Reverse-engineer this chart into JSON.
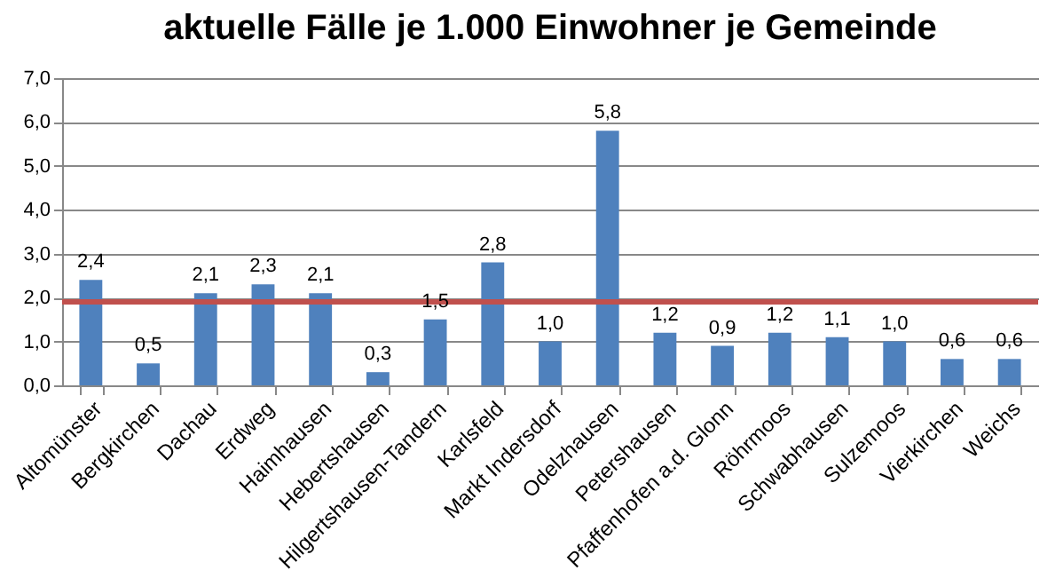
{
  "chart_data": {
    "type": "bar",
    "title": "aktuelle Fälle je 1.000 Einwohner je Gemeinde",
    "categories": [
      "Altomünster",
      "Bergkirchen",
      "Dachau",
      "Erdweg",
      "Haimhausen",
      "Hebertshausen",
      "Hilgertshausen-Tandern",
      "Karlsfeld",
      "Markt Indersdorf",
      "Odelzhausen",
      "Petershausen",
      "Pfaffenhofen a.d. Glonn",
      "Röhrmoos",
      "Schwabhausen",
      "Sulzemoos",
      "Vierkirchen",
      "Weichs"
    ],
    "values": [
      2.4,
      0.5,
      2.1,
      2.3,
      2.1,
      0.3,
      1.5,
      2.8,
      1.0,
      5.8,
      1.2,
      0.9,
      1.2,
      1.1,
      1.0,
      0.6,
      0.6
    ],
    "value_labels": [
      "2,4",
      "0,5",
      "2,1",
      "2,3",
      "2,1",
      "0,3",
      "1,5",
      "2,8",
      "1,0",
      "5,8",
      "1,2",
      "0,9",
      "1,2",
      "1,1",
      "1,0",
      "0,6",
      "0,6"
    ],
    "color": "#4f81bd",
    "ylim": [
      0,
      7
    ],
    "yticks": [
      {
        "value": 0,
        "label": "0,0"
      },
      {
        "value": 1,
        "label": "1,0"
      },
      {
        "value": 2,
        "label": "2,0"
      },
      {
        "value": 3,
        "label": "3,0"
      },
      {
        "value": 4,
        "label": "4,0"
      },
      {
        "value": 5,
        "label": "5,0"
      },
      {
        "value": 6,
        "label": "6,0"
      },
      {
        "value": 7,
        "label": "7,0"
      }
    ],
    "grid": "y",
    "ref_lines": [
      {
        "axis": "y",
        "value": 1.9,
        "color": "#c0504d"
      }
    ]
  }
}
